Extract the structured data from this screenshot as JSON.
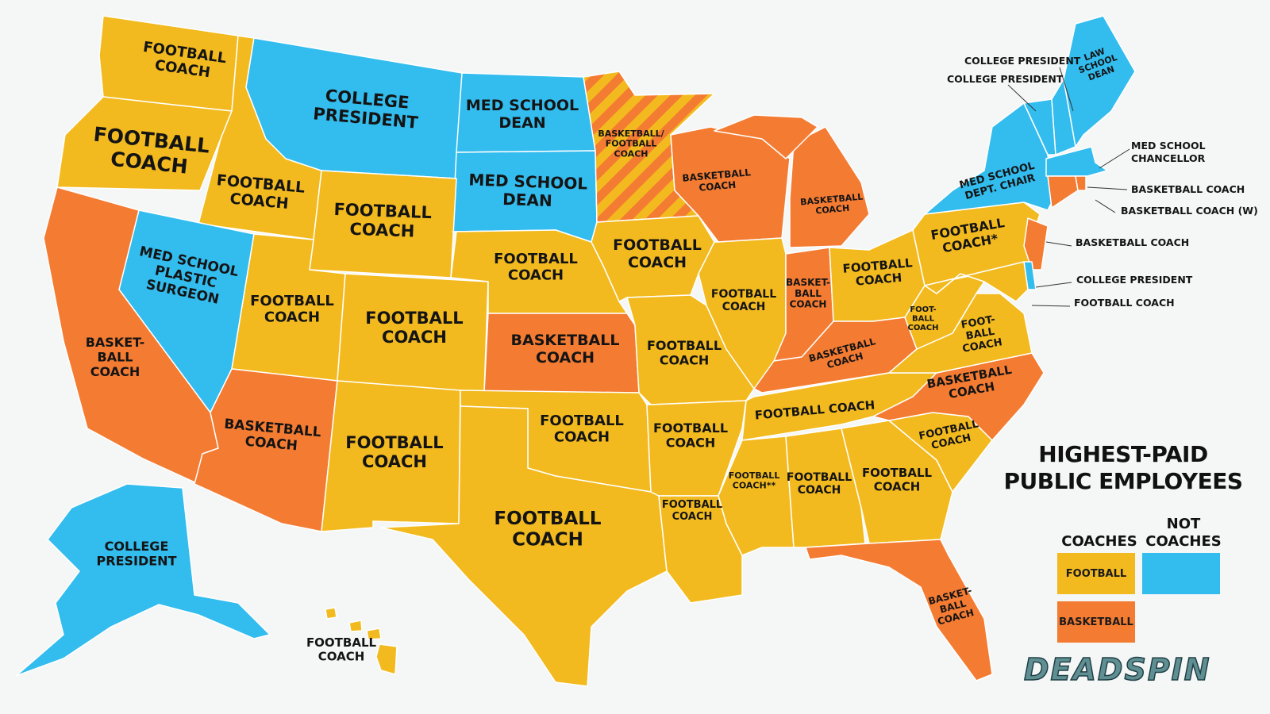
{
  "title": {
    "line1": "HIGHEST-PAID",
    "line2": "PUBLIC EMPLOYEES"
  },
  "legend": {
    "coaches_header": "COACHES",
    "not_coaches_header_line1": "NOT",
    "not_coaches_header_line2": "COACHES",
    "football_label": "FOOTBALL",
    "basketball_label": "BASKETBALL"
  },
  "logo": "DEADSPIN",
  "colors": {
    "football": "#f3ba1f",
    "basketball": "#f47b32",
    "not_coach": "#33bcee",
    "background": "#f5f6f6"
  },
  "states": {
    "WA": {
      "label": "FOOTBALL\nCOACH",
      "category": "football"
    },
    "OR": {
      "label": "FOOTBALL\nCOACH",
      "category": "football"
    },
    "ID": {
      "label": "FOOTBALL\nCOACH",
      "category": "football"
    },
    "MT": {
      "label": "COLLEGE\nPRESIDENT",
      "category": "not_coach"
    },
    "ND": {
      "label": "MED SCHOOL\nDEAN",
      "category": "not_coach"
    },
    "SD": {
      "label": "MED SCHOOL\nDEAN",
      "category": "not_coach"
    },
    "WY": {
      "label": "FOOTBALL\nCOACH",
      "category": "football"
    },
    "NV": {
      "label": "MED SCHOOL\nPLASTIC\nSURGEON",
      "category": "not_coach"
    },
    "CA": {
      "label": "BASKET-\nBALL\nCOACH",
      "category": "basketball"
    },
    "UT": {
      "label": "FOOTBALL\nCOACH",
      "category": "football"
    },
    "CO": {
      "label": "FOOTBALL\nCOACH",
      "category": "football"
    },
    "NE": {
      "label": "FOOTBALL\nCOACH",
      "category": "football"
    },
    "KS": {
      "label": "BASKETBALL\nCOACH",
      "category": "basketball"
    },
    "AZ": {
      "label": "BASKETBALL\nCOACH",
      "category": "basketball"
    },
    "NM": {
      "label": "FOOTBALL\nCOACH",
      "category": "football"
    },
    "OK": {
      "label": "FOOTBALL\nCOACH",
      "category": "football"
    },
    "TX": {
      "label": "FOOTBALL\nCOACH",
      "category": "football"
    },
    "MN": {
      "label": "BASKETBALL/\nFOOTBALL\nCOACH",
      "category": "split"
    },
    "IA": {
      "label": "FOOTBALL\nCOACH",
      "category": "football"
    },
    "MO": {
      "label": "FOOTBALL\nCOACH",
      "category": "football"
    },
    "AR": {
      "label": "FOOTBALL\nCOACH",
      "category": "football"
    },
    "LA": {
      "label": "FOOTBALL\nCOACH",
      "category": "football"
    },
    "WI": {
      "label": "BASKETBALL\nCOACH",
      "category": "basketball"
    },
    "MI": {
      "label": "BASKETBALL\nCOACH",
      "category": "basketball"
    },
    "IL": {
      "label": "FOOTBALL\nCOACH",
      "category": "football"
    },
    "IN": {
      "label": "BASKET-\nBALL\nCOACH",
      "category": "basketball"
    },
    "OH": {
      "label": "FOOTBALL\nCOACH",
      "category": "football"
    },
    "KY": {
      "label": "BASKETBALL\nCOACH",
      "category": "basketball"
    },
    "TN": {
      "label": "FOOTBALL COACH",
      "category": "football"
    },
    "MS": {
      "label": "FOOTBALL\nCOACH**",
      "category": "football"
    },
    "AL": {
      "label": "FOOTBALL\nCOACH",
      "category": "football"
    },
    "GA": {
      "label": "FOOTBALL\nCOACH",
      "category": "football"
    },
    "SC": {
      "label": "FOOTBALL\nCOACH",
      "category": "football"
    },
    "NC": {
      "label": "BASKETBALL\nCOACH",
      "category": "basketball"
    },
    "VA": {
      "label": "FOOT-\nBALL\nCOACH",
      "category": "football"
    },
    "WV": {
      "label": "FOOT-\nBALL\nCOACH",
      "category": "football"
    },
    "PA": {
      "label": "FOOTBALL\nCOACH*",
      "category": "football"
    },
    "NY": {
      "label": "MED SCHOOL\nDEPT. CHAIR",
      "category": "not_coach"
    },
    "ME": {
      "label": "LAW\nSCHOOL\nDEAN",
      "category": "not_coach"
    },
    "FL": {
      "label": "BASKET-\nBALL\nCOACH",
      "category": "basketball"
    },
    "AK": {
      "label": "COLLEGE\nPRESIDENT",
      "category": "not_coach"
    },
    "HI": {
      "label": "FOOTBALL\nCOACH",
      "category": "football"
    },
    "NH": {
      "label": "COLLEGE PRESIDENT",
      "category": "not_coach"
    },
    "VT": {
      "label": "COLLEGE PRESIDENT",
      "category": "not_coach"
    },
    "MA": {
      "label": "MED SCHOOL\nCHANCELLOR",
      "category": "not_coach"
    },
    "RI": {
      "label": "BASKETBALL COACH",
      "category": "basketball"
    },
    "CT": {
      "label": "BASKETBALL COACH (W)",
      "category": "basketball"
    },
    "NJ": {
      "label": "BASKETBALL COACH",
      "category": "basketball"
    },
    "DE": {
      "label": "COLLEGE PRESIDENT",
      "category": "not_coach"
    },
    "MD": {
      "label": "FOOTBALL COACH",
      "category": "football"
    }
  }
}
